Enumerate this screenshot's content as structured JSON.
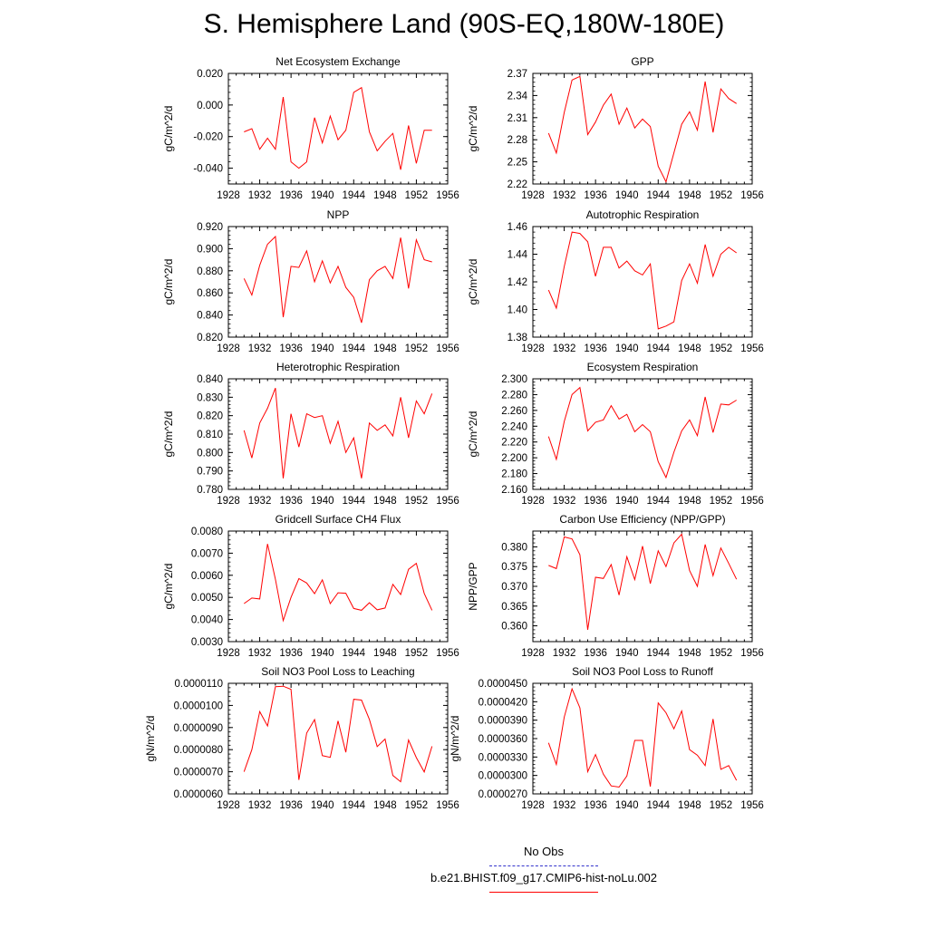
{
  "title": "S. Hemisphere Land (90S-EQ,180W-180E)",
  "legend": [
    {
      "label": "No Obs",
      "color": "#3333cc",
      "style": "dashed"
    },
    {
      "label": "b.e21.BHIST.f09_g17.CMIP6-hist-noLu.002",
      "color": "#ff0000",
      "style": "solid"
    }
  ],
  "chart_data": [
    {
      "type": "line",
      "title": "Net Ecosystem Exchange",
      "ylabel": "gC/m^2/d",
      "xlim": [
        1928,
        1956
      ],
      "xticks": [
        "1928",
        "1932",
        "1936",
        "1940",
        "1944",
        "1948",
        "1952",
        "1956"
      ],
      "ylim": [
        -0.05,
        0.02
      ],
      "yticks": [
        "-0.040",
        "-0.020",
        "0.000",
        "0.020"
      ],
      "ytick_values": [
        -0.04,
        -0.02,
        0.0,
        0.02
      ],
      "x": [
        1930,
        1931,
        1932,
        1933,
        1934,
        1935,
        1936,
        1937,
        1938,
        1939,
        1940,
        1941,
        1942,
        1943,
        1944,
        1945,
        1946,
        1947,
        1948,
        1949,
        1950,
        1951,
        1952,
        1953,
        1954
      ],
      "series": [
        {
          "color": "#ff0000",
          "values": [
            -0.017,
            -0.015,
            -0.028,
            -0.021,
            -0.028,
            0.005,
            -0.036,
            -0.04,
            -0.036,
            -0.008,
            -0.024,
            -0.007,
            -0.022,
            -0.016,
            0.008,
            0.011,
            -0.017,
            -0.029,
            -0.023,
            -0.018,
            -0.041,
            -0.013,
            -0.037,
            -0.016,
            -0.016
          ]
        }
      ]
    },
    {
      "type": "line",
      "title": "GPP",
      "ylabel": "gC/m^2/d",
      "xlim": [
        1928,
        1956
      ],
      "xticks": [
        "1928",
        "1932",
        "1936",
        "1940",
        "1944",
        "1948",
        "1952",
        "1956"
      ],
      "ylim": [
        2.22,
        2.37
      ],
      "yticks": [
        "2.22",
        "2.25",
        "2.28",
        "2.31",
        "2.34",
        "2.37"
      ],
      "ytick_values": [
        2.22,
        2.25,
        2.28,
        2.31,
        2.34,
        2.37
      ],
      "x": [
        1930,
        1931,
        1932,
        1933,
        1934,
        1935,
        1936,
        1937,
        1938,
        1939,
        1940,
        1941,
        1942,
        1943,
        1944,
        1945,
        1946,
        1947,
        1948,
        1949,
        1950,
        1951,
        1952,
        1953,
        1954
      ],
      "series": [
        {
          "color": "#ff0000",
          "values": [
            2.289,
            2.262,
            2.317,
            2.361,
            2.366,
            2.287,
            2.304,
            2.327,
            2.342,
            2.301,
            2.323,
            2.296,
            2.308,
            2.298,
            2.244,
            2.223,
            2.262,
            2.301,
            2.318,
            2.293,
            2.359,
            2.29,
            2.349,
            2.336,
            2.329
          ]
        }
      ]
    },
    {
      "type": "line",
      "title": "NPP",
      "ylabel": "gC/m^2/d",
      "xlim": [
        1928,
        1956
      ],
      "xticks": [
        "1928",
        "1932",
        "1936",
        "1940",
        "1944",
        "1948",
        "1952",
        "1956"
      ],
      "ylim": [
        0.82,
        0.92
      ],
      "yticks": [
        "0.820",
        "0.840",
        "0.860",
        "0.880",
        "0.900",
        "0.920"
      ],
      "ytick_values": [
        0.82,
        0.84,
        0.86,
        0.88,
        0.9,
        0.92
      ],
      "x": [
        1930,
        1931,
        1932,
        1933,
        1934,
        1935,
        1936,
        1937,
        1938,
        1939,
        1940,
        1941,
        1942,
        1943,
        1944,
        1945,
        1946,
        1947,
        1948,
        1949,
        1950,
        1951,
        1952,
        1953,
        1954
      ],
      "series": [
        {
          "color": "#ff0000",
          "values": [
            0.873,
            0.858,
            0.885,
            0.904,
            0.911,
            0.838,
            0.884,
            0.883,
            0.898,
            0.87,
            0.889,
            0.869,
            0.884,
            0.865,
            0.856,
            0.833,
            0.872,
            0.88,
            0.884,
            0.873,
            0.91,
            0.864,
            0.908,
            0.89,
            0.888
          ]
        }
      ]
    },
    {
      "type": "line",
      "title": "Autotrophic Respiration",
      "ylabel": "gC/m^2/d",
      "xlim": [
        1928,
        1956
      ],
      "xticks": [
        "1928",
        "1932",
        "1936",
        "1940",
        "1944",
        "1948",
        "1952",
        "1956"
      ],
      "ylim": [
        1.38,
        1.46
      ],
      "yticks": [
        "1.38",
        "1.40",
        "1.42",
        "1.44",
        "1.46"
      ],
      "ytick_values": [
        1.38,
        1.4,
        1.42,
        1.44,
        1.46
      ],
      "x": [
        1930,
        1931,
        1932,
        1933,
        1934,
        1935,
        1936,
        1937,
        1938,
        1939,
        1940,
        1941,
        1942,
        1943,
        1944,
        1945,
        1946,
        1947,
        1948,
        1949,
        1950,
        1951,
        1952,
        1953,
        1954
      ],
      "series": [
        {
          "color": "#ff0000",
          "values": [
            1.414,
            1.401,
            1.431,
            1.456,
            1.455,
            1.449,
            1.424,
            1.445,
            1.445,
            1.43,
            1.435,
            1.428,
            1.425,
            1.433,
            1.386,
            1.388,
            1.391,
            1.421,
            1.433,
            1.419,
            1.447,
            1.424,
            1.44,
            1.445,
            1.441
          ]
        }
      ]
    },
    {
      "type": "line",
      "title": "Heterotrophic Respiration",
      "ylabel": "gC/m^2/d",
      "xlim": [
        1928,
        1956
      ],
      "xticks": [
        "1928",
        "1932",
        "1936",
        "1940",
        "1944",
        "1948",
        "1952",
        "1956"
      ],
      "ylim": [
        0.78,
        0.84
      ],
      "yticks": [
        "0.780",
        "0.790",
        "0.800",
        "0.810",
        "0.820",
        "0.830",
        "0.840"
      ],
      "ytick_values": [
        0.78,
        0.79,
        0.8,
        0.81,
        0.82,
        0.83,
        0.84
      ],
      "x": [
        1930,
        1931,
        1932,
        1933,
        1934,
        1935,
        1936,
        1937,
        1938,
        1939,
        1940,
        1941,
        1942,
        1943,
        1944,
        1945,
        1946,
        1947,
        1948,
        1949,
        1950,
        1951,
        1952,
        1953,
        1954
      ],
      "series": [
        {
          "color": "#ff0000",
          "values": [
            0.812,
            0.797,
            0.816,
            0.824,
            0.835,
            0.786,
            0.821,
            0.803,
            0.821,
            0.819,
            0.82,
            0.805,
            0.817,
            0.8,
            0.808,
            0.786,
            0.816,
            0.812,
            0.815,
            0.809,
            0.83,
            0.808,
            0.828,
            0.821,
            0.832
          ]
        }
      ]
    },
    {
      "type": "line",
      "title": "Ecosystem Respiration",
      "ylabel": "gC/m^2/d",
      "xlim": [
        1928,
        1956
      ],
      "xticks": [
        "1928",
        "1932",
        "1936",
        "1940",
        "1944",
        "1948",
        "1952",
        "1956"
      ],
      "ylim": [
        2.16,
        2.3
      ],
      "yticks": [
        "2.160",
        "2.180",
        "2.200",
        "2.220",
        "2.240",
        "2.260",
        "2.280",
        "2.300"
      ],
      "ytick_values": [
        2.16,
        2.18,
        2.2,
        2.22,
        2.24,
        2.26,
        2.28,
        2.3
      ],
      "x": [
        1930,
        1931,
        1932,
        1933,
        1934,
        1935,
        1936,
        1937,
        1938,
        1939,
        1940,
        1941,
        1942,
        1943,
        1944,
        1945,
        1946,
        1947,
        1948,
        1949,
        1950,
        1951,
        1952,
        1953,
        1954
      ],
      "series": [
        {
          "color": "#ff0000",
          "values": [
            2.227,
            2.198,
            2.246,
            2.28,
            2.289,
            2.234,
            2.245,
            2.248,
            2.266,
            2.249,
            2.255,
            2.233,
            2.242,
            2.233,
            2.195,
            2.175,
            2.207,
            2.234,
            2.248,
            2.228,
            2.277,
            2.232,
            2.268,
            2.267,
            2.273
          ]
        }
      ]
    },
    {
      "type": "line",
      "title": "Gridcell Surface CH4 Flux",
      "ylabel": "gC/m^2/d",
      "xlim": [
        1928,
        1956
      ],
      "xticks": [
        "1928",
        "1932",
        "1936",
        "1940",
        "1944",
        "1948",
        "1952",
        "1956"
      ],
      "ylim": [
        0.003,
        0.008
      ],
      "yticks": [
        "0.0030",
        "0.0040",
        "0.0050",
        "0.0060",
        "0.0070",
        "0.0080"
      ],
      "ytick_values": [
        0.003,
        0.004,
        0.005,
        0.006,
        0.007,
        0.008
      ],
      "x": [
        1930,
        1931,
        1932,
        1933,
        1934,
        1935,
        1936,
        1937,
        1938,
        1939,
        1940,
        1941,
        1942,
        1943,
        1944,
        1945,
        1946,
        1947,
        1948,
        1949,
        1950,
        1951,
        1952,
        1953,
        1954
      ],
      "series": [
        {
          "color": "#ff0000",
          "values": [
            0.00472,
            0.00497,
            0.00493,
            0.00742,
            0.00582,
            0.00395,
            0.005,
            0.00585,
            0.00565,
            0.00517,
            0.00579,
            0.00472,
            0.00521,
            0.00519,
            0.0045,
            0.00442,
            0.00476,
            0.00444,
            0.00452,
            0.00559,
            0.00513,
            0.00627,
            0.00654,
            0.00518,
            0.00442
          ]
        }
      ]
    },
    {
      "type": "line",
      "title": "Carbon Use Efficiency (NPP/GPP)",
      "ylabel": "NPP/GPP",
      "xlim": [
        1928,
        1956
      ],
      "xticks": [
        "1928",
        "1932",
        "1936",
        "1940",
        "1944",
        "1948",
        "1952",
        "1956"
      ],
      "ylim": [
        0.356,
        0.384
      ],
      "yticks": [
        "0.360",
        "0.365",
        "0.370",
        "0.375",
        "0.380"
      ],
      "ytick_values": [
        0.36,
        0.365,
        0.37,
        0.375,
        0.38
      ],
      "x": [
        1930,
        1931,
        1932,
        1933,
        1934,
        1935,
        1936,
        1937,
        1938,
        1939,
        1940,
        1941,
        1942,
        1943,
        1944,
        1945,
        1946,
        1947,
        1948,
        1949,
        1950,
        1951,
        1952,
        1953,
        1954
      ],
      "series": [
        {
          "color": "#ff0000",
          "values": [
            0.3753,
            0.3745,
            0.3825,
            0.382,
            0.378,
            0.359,
            0.3723,
            0.372,
            0.3755,
            0.3678,
            0.3775,
            0.3717,
            0.3802,
            0.3707,
            0.379,
            0.375,
            0.381,
            0.3832,
            0.374,
            0.37,
            0.3806,
            0.3727,
            0.3797,
            0.3758,
            0.3718
          ]
        }
      ]
    },
    {
      "type": "line",
      "title": "Soil NO3 Pool Loss to Leaching",
      "ylabel": "gN/m^2/d",
      "xlim": [
        1928,
        1956
      ],
      "xticks": [
        "1928",
        "1932",
        "1936",
        "1940",
        "1944",
        "1948",
        "1952",
        "1956"
      ],
      "ylim": [
        6e-06,
        1.1e-05
      ],
      "yticks": [
        "0.0000060",
        "0.0000070",
        "0.0000080",
        "0.0000090",
        "0.0000100",
        "0.0000110"
      ],
      "ytick_values": [
        6e-06,
        7e-06,
        8e-06,
        9e-06,
        1e-05,
        1.1e-05
      ],
      "x": [
        1930,
        1931,
        1932,
        1933,
        1934,
        1935,
        1936,
        1937,
        1938,
        1939,
        1940,
        1941,
        1942,
        1943,
        1944,
        1945,
        1946,
        1947,
        1948,
        1949,
        1950,
        1951,
        1952,
        1953,
        1954
      ],
      "series": [
        {
          "color": "#ff0000",
          "values": [
            7e-06,
            8e-06,
            9.72e-06,
            9.07e-06,
            1.085e-05,
            1.087e-05,
            1.073e-05,
            6.63e-06,
            8.75e-06,
            9.36e-06,
            7.73e-06,
            7.65e-06,
            9.3e-06,
            7.88e-06,
            1.028e-05,
            1.024e-05,
            9.37e-06,
            8.14e-06,
            8.48e-06,
            6.83e-06,
            6.55e-06,
            8.44e-06,
            7.64e-06,
            6.99e-06,
            8.15e-06
          ]
        }
      ]
    },
    {
      "type": "line",
      "title": "Soil NO3 Pool Loss to Runoff",
      "ylabel": "gN/m^2/d",
      "xlim": [
        1928,
        1956
      ],
      "xticks": [
        "1928",
        "1932",
        "1936",
        "1940",
        "1944",
        "1948",
        "1952",
        "1956"
      ],
      "ylim": [
        2.7e-05,
        4.5e-05
      ],
      "yticks": [
        "0.0000270",
        "0.0000300",
        "0.0000330",
        "0.0000360",
        "0.0000390",
        "0.0000420",
        "0.0000450"
      ],
      "ytick_values": [
        2.7e-05,
        3e-05,
        3.3e-05,
        3.6e-05,
        3.9e-05,
        4.2e-05,
        4.5e-05
      ],
      "x": [
        1930,
        1931,
        1932,
        1933,
        1934,
        1935,
        1936,
        1937,
        1938,
        1939,
        1940,
        1941,
        1942,
        1943,
        1944,
        1945,
        1946,
        1947,
        1948,
        1949,
        1950,
        1951,
        1952,
        1953,
        1954
      ],
      "series": [
        {
          "color": "#ff0000",
          "values": [
            3.53e-05,
            3.18e-05,
            3.95e-05,
            4.41e-05,
            4.1e-05,
            3.06e-05,
            3.34e-05,
            3.02e-05,
            2.83e-05,
            2.81e-05,
            2.99e-05,
            3.57e-05,
            3.57e-05,
            2.82e-05,
            4.18e-05,
            4.02e-05,
            3.76e-05,
            4.05e-05,
            3.42e-05,
            3.33e-05,
            3.16e-05,
            3.92e-05,
            3.1e-05,
            3.16e-05,
            2.92e-05
          ]
        }
      ]
    }
  ]
}
